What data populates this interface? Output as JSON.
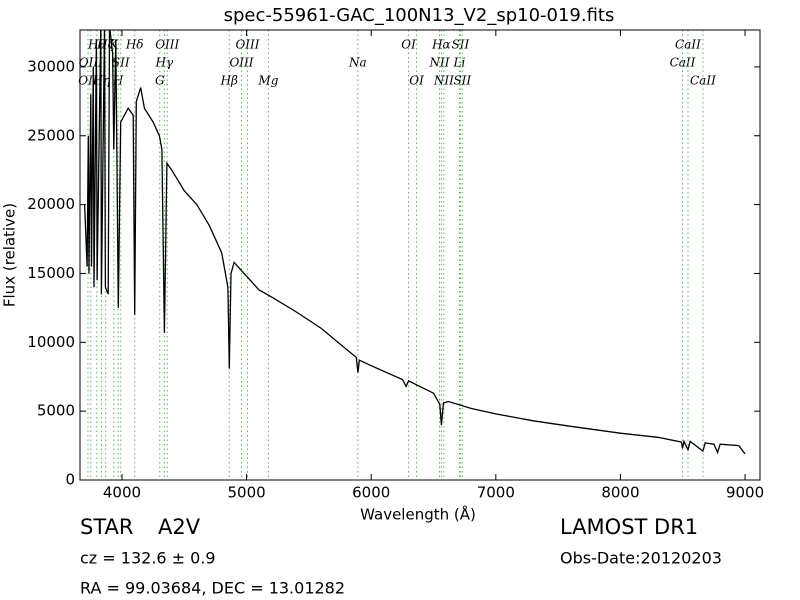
{
  "chart_data": {
    "type": "line",
    "title": "spec-55961-GAC_100N13_V2_sp10-019.fits",
    "x_label": "Wavelength (Å)",
    "y_label": "Flux (relative)",
    "xlim": [
      3663,
      9120
    ],
    "ylim": [
      0,
      32680
    ],
    "xticks": [
      4000,
      5000,
      6000,
      7000,
      8000,
      9000
    ],
    "yticks": [
      0,
      5000,
      10000,
      15000,
      20000,
      25000,
      30000
    ],
    "x": [
      3700,
      3720,
      3730,
      3735,
      3750,
      3755,
      3770,
      3775,
      3795,
      3800,
      3830,
      3835,
      3860,
      3867,
      3889,
      3900,
      3925,
      3934,
      3950,
      3970,
      3990,
      4050,
      4090,
      4102,
      4115,
      4150,
      4180,
      4250,
      4300,
      4320,
      4340,
      4360,
      4400,
      4500,
      4600,
      4700,
      4800,
      4850,
      4861,
      4875,
      4900,
      5000,
      5100,
      5200,
      5400,
      5600,
      5800,
      5880,
      5893,
      5905,
      6000,
      6250,
      6280,
      6300,
      6500,
      6550,
      6563,
      6580,
      6620,
      6800,
      7000,
      7300,
      7600,
      8000,
      8300,
      8490,
      8498,
      8510,
      8542,
      8560,
      8662,
      8680,
      8750,
      8780,
      8800,
      8950,
      9000
    ],
    "series": [
      {
        "name": "Flux",
        "color": "#000000",
        "values": [
          20000,
          15500,
          25000,
          15000,
          28000,
          15500,
          30000,
          14000,
          32000,
          14500,
          33000,
          13500,
          33000,
          14000,
          13500,
          33000,
          31000,
          24000,
          32000,
          12500,
          26000,
          27000,
          26500,
          12000,
          27500,
          28500,
          27000,
          26000,
          25000,
          24000,
          10700,
          23000,
          22500,
          21000,
          20000,
          18500,
          16500,
          14000,
          8100,
          15000,
          15800,
          14800,
          13800,
          13300,
          12200,
          11000,
          9500,
          8900,
          7800,
          8700,
          8300,
          7300,
          6800,
          7200,
          6300,
          5500,
          4000,
          5600,
          5700,
          5200,
          4800,
          4300,
          3900,
          3400,
          3100,
          2750,
          2300,
          2800,
          2200,
          2800,
          2100,
          2700,
          2600,
          2000,
          2600,
          2500,
          1900
        ]
      }
    ],
    "lines": [
      {
        "wavelength": 3727,
        "label": "OII",
        "row": 3
      },
      {
        "wavelength": 3750,
        "label": "OIII",
        "row": 2
      },
      {
        "wavelength": 3798,
        "label": "Hθ",
        "row": 1
      },
      {
        "wavelength": 3835,
        "label": "Hη",
        "row": 3
      },
      {
        "wavelength": 3869,
        "label": "Hζ",
        "row": 1
      },
      {
        "wavelength": 3934,
        "label": "K",
        "row": 1
      },
      {
        "wavelength": 3969,
        "label": "H",
        "row": 3
      },
      {
        "wavelength": 3990,
        "label": "SII",
        "row": 2
      },
      {
        "wavelength": 4102,
        "label": "Hδ",
        "row": 1
      },
      {
        "wavelength": 4303,
        "label": "G",
        "row": 3
      },
      {
        "wavelength": 4340,
        "label": "Hγ",
        "row": 2
      },
      {
        "wavelength": 4363,
        "label": "OIII",
        "row": 1
      },
      {
        "wavelength": 4861,
        "label": "Hβ",
        "row": 3
      },
      {
        "wavelength": 4959,
        "label": "OIII",
        "row": 2
      },
      {
        "wavelength": 5007,
        "label": "OIII",
        "row": 1
      },
      {
        "wavelength": 5175,
        "label": "Mg",
        "row": 3
      },
      {
        "wavelength": 5893,
        "label": "Na",
        "row": 2
      },
      {
        "wavelength": 6300,
        "label": "OI",
        "row": 1
      },
      {
        "wavelength": 6364,
        "label": "OI",
        "row": 3
      },
      {
        "wavelength": 6548,
        "label": "NII",
        "row": 2
      },
      {
        "wavelength": 6563,
        "label": "Hα",
        "row": 1
      },
      {
        "wavelength": 6583,
        "label": "NII",
        "row": 3
      },
      {
        "wavelength": 6708,
        "label": "Li",
        "row": 2
      },
      {
        "wavelength": 6716,
        "label": "SII",
        "row": 1
      },
      {
        "wavelength": 6731,
        "label": "SII",
        "row": 3
      },
      {
        "wavelength": 8498,
        "label": "CaII",
        "row": 2
      },
      {
        "wavelength": 8542,
        "label": "CaII",
        "row": 1
      },
      {
        "wavelength": 8662,
        "label": "CaII",
        "row": 3
      }
    ],
    "line_color": "#55bb55",
    "footer": {
      "class": "STAR",
      "subclass": "A2V",
      "survey": "LAMOST DR1",
      "cz": "cz = 132.6 ± 0.9",
      "obs_date": "Obs-Date:20120203",
      "coords": "RA = 99.03684, DEC = 13.01282"
    }
  }
}
